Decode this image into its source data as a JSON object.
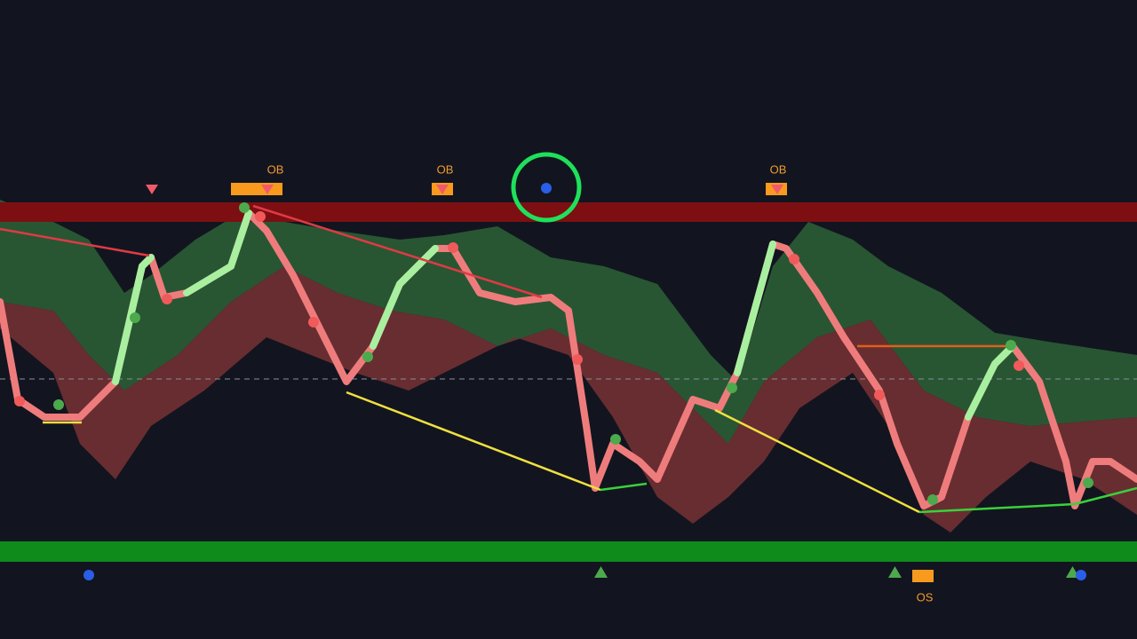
{
  "signals": [
    {
      "label": "OB"
    },
    {
      "label": "OB"
    },
    {
      "label": "OB"
    },
    {
      "label": "OS"
    }
  ]
}
